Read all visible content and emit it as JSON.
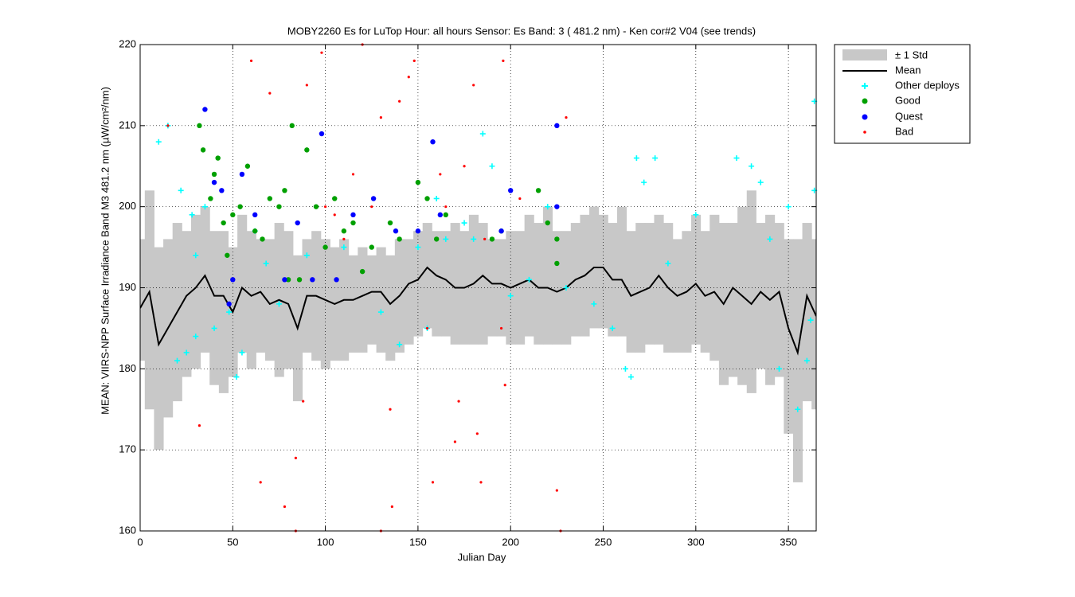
{
  "chart_data": {
    "type": "scatter",
    "title": "MOBY2260   Es for LuTop  Hour: all hours  Sensor: Es Band: 3 ( 481.2 nm)  - Ken cor#2 V04 (see trends)",
    "x_label": "Julian Day",
    "y_label": "MEAN: VIIRS-NPP Surface Irradiance Band M3 481.2 nm (µW/cm²/nm)",
    "xlim": [
      0,
      365
    ],
    "ylim": [
      160,
      220
    ],
    "xticks": [
      0,
      50,
      100,
      150,
      200,
      250,
      300,
      350
    ],
    "yticks": [
      160,
      170,
      180,
      190,
      200,
      210,
      220
    ],
    "grid": true,
    "legend": "outside-top-right",
    "band": {
      "name": "± 1 Std",
      "color": "#c8c8c8",
      "x": [
        0,
        5,
        10,
        15,
        20,
        25,
        30,
        35,
        40,
        45,
        50,
        55,
        60,
        65,
        70,
        75,
        80,
        85,
        90,
        95,
        100,
        105,
        110,
        115,
        120,
        125,
        130,
        135,
        140,
        145,
        150,
        155,
        160,
        165,
        170,
        175,
        180,
        185,
        190,
        195,
        200,
        205,
        210,
        215,
        220,
        225,
        230,
        235,
        240,
        245,
        250,
        255,
        260,
        265,
        270,
        275,
        280,
        285,
        290,
        295,
        300,
        305,
        310,
        315,
        320,
        325,
        330,
        335,
        340,
        345,
        350,
        355,
        360,
        365
      ],
      "upper": [
        196,
        202,
        195,
        196,
        198,
        197,
        199,
        200,
        197,
        197,
        195,
        199,
        197,
        196,
        196,
        198,
        197,
        194,
        196,
        197,
        196,
        195,
        196,
        194,
        195,
        194,
        195,
        194,
        196,
        196,
        197,
        198,
        197,
        197,
        198,
        197,
        199,
        198,
        196,
        196,
        197,
        197,
        199,
        198,
        200,
        197,
        197,
        198,
        199,
        200,
        199,
        198,
        200,
        197,
        198,
        198,
        199,
        198,
        196,
        197,
        199,
        197,
        199,
        198,
        198,
        200,
        202,
        198,
        199,
        198,
        196,
        196,
        198,
        196
      ],
      "lower": [
        181,
        175,
        170,
        174,
        176,
        179,
        180,
        182,
        178,
        177,
        179,
        182,
        180,
        182,
        181,
        179,
        180,
        176,
        182,
        181,
        180,
        181,
        181,
        182,
        182,
        183,
        182,
        181,
        182,
        183,
        184,
        185,
        184,
        184,
        183,
        183,
        183,
        183,
        184,
        184,
        183,
        183,
        184,
        183,
        183,
        183,
        183,
        184,
        184,
        185,
        185,
        184,
        184,
        182,
        182,
        183,
        183,
        182,
        182,
        182,
        183,
        182,
        181,
        178,
        179,
        178,
        177,
        180,
        178,
        179,
        172,
        166,
        176,
        175
      ]
    },
    "mean": {
      "name": "Mean",
      "color": "#000000",
      "x": [
        0,
        5,
        10,
        15,
        20,
        25,
        30,
        35,
        40,
        45,
        50,
        55,
        60,
        65,
        70,
        75,
        80,
        85,
        90,
        95,
        100,
        105,
        110,
        115,
        120,
        125,
        130,
        135,
        140,
        145,
        150,
        155,
        160,
        165,
        170,
        175,
        180,
        185,
        190,
        195,
        200,
        205,
        210,
        215,
        220,
        225,
        230,
        235,
        240,
        245,
        250,
        255,
        260,
        265,
        270,
        275,
        280,
        285,
        290,
        295,
        300,
        305,
        310,
        315,
        320,
        325,
        330,
        335,
        340,
        345,
        350,
        355,
        360,
        365
      ],
      "values": [
        187.5,
        189.5,
        183,
        185,
        187,
        189,
        190,
        191.5,
        189,
        189,
        187,
        190,
        189,
        189.5,
        188,
        188.5,
        188,
        185,
        189,
        189,
        188.5,
        188,
        188.5,
        188.5,
        189,
        189.5,
        189.5,
        188,
        189,
        190.5,
        191,
        192.5,
        191.5,
        191,
        190,
        190,
        190.5,
        191.5,
        190.5,
        190.5,
        190,
        190.5,
        191,
        190,
        190,
        189.5,
        190,
        191,
        191.5,
        192.5,
        192.5,
        191,
        191,
        189,
        189.5,
        190,
        191.5,
        190,
        189,
        189.5,
        190.5,
        189,
        189.5,
        188,
        190,
        189,
        188,
        189.5,
        188.5,
        189.5,
        185,
        182,
        189,
        186.5
      ]
    },
    "series": [
      {
        "name": "Other deploys",
        "color": "#00ffff",
        "marker": "+",
        "x": [
          10,
          15,
          22,
          28,
          30,
          20,
          25,
          30,
          35,
          40,
          48,
          52,
          55,
          62,
          68,
          75,
          90,
          110,
          130,
          140,
          150,
          155,
          160,
          165,
          175,
          180,
          185,
          190,
          200,
          210,
          220,
          230,
          245,
          255,
          262,
          265,
          268,
          272,
          278,
          285,
          300,
          322,
          330,
          335,
          340,
          345,
          350,
          355,
          360,
          362,
          364,
          364
        ],
        "values": [
          208,
          210,
          202,
          199,
          194,
          181,
          182,
          184,
          200,
          185,
          187,
          179,
          182,
          197,
          193,
          188,
          194,
          195,
          187,
          183,
          195,
          185,
          201,
          196,
          198,
          196,
          209,
          205,
          189,
          191,
          200,
          190,
          188,
          185,
          180,
          179,
          206,
          203,
          206,
          193,
          199,
          206,
          205,
          203,
          196,
          180,
          200,
          175,
          181,
          186,
          213,
          202
        ]
      },
      {
        "name": "Good",
        "color": "#00a000",
        "marker": "o",
        "x": [
          32,
          34,
          38,
          40,
          42,
          45,
          47,
          50,
          54,
          58,
          62,
          66,
          70,
          75,
          78,
          80,
          82,
          86,
          90,
          95,
          100,
          105,
          110,
          115,
          120,
          125,
          135,
          140,
          150,
          155,
          160,
          165,
          190,
          195,
          215,
          220,
          225,
          225
        ],
        "values": [
          210,
          207,
          201,
          204,
          206,
          198,
          194,
          199,
          200,
          205,
          197,
          196,
          201,
          200,
          202,
          191,
          210,
          191,
          207,
          200,
          195,
          201,
          197,
          198,
          192,
          195,
          198,
          196,
          203,
          201,
          196,
          199,
          196,
          197,
          202,
          198,
          196,
          193
        ]
      },
      {
        "name": "Quest",
        "color": "#0000ff",
        "marker": "o",
        "x": [
          35,
          40,
          44,
          48,
          50,
          55,
          62,
          78,
          85,
          93,
          98,
          106,
          115,
          126,
          138,
          150,
          158,
          162,
          195,
          200,
          225,
          225
        ],
        "values": [
          212,
          203,
          202,
          188,
          191,
          204,
          199,
          191,
          198,
          191,
          209,
          191,
          199,
          201,
          197,
          197,
          208,
          199,
          197,
          202,
          210,
          200
        ]
      },
      {
        "name": "Bad",
        "color": "#ff0000",
        "marker": ".",
        "x": [
          15,
          32,
          60,
          65,
          70,
          78,
          84,
          84,
          88,
          90,
          98,
          100,
          105,
          110,
          115,
          120,
          125,
          130,
          130,
          135,
          136,
          140,
          145,
          148,
          155,
          158,
          162,
          165,
          170,
          172,
          175,
          180,
          182,
          184,
          186,
          195,
          197,
          196,
          205,
          225,
          227,
          230
        ],
        "values": [
          210,
          173,
          218,
          166,
          214,
          163,
          169,
          160,
          176,
          215,
          219,
          200,
          199,
          196,
          204,
          220,
          200,
          211,
          160,
          175,
          163,
          213,
          216,
          218,
          185,
          166,
          204,
          200,
          171,
          176,
          205,
          215,
          172,
          166,
          196,
          185,
          178,
          218,
          201,
          165,
          160,
          211
        ]
      }
    ]
  }
}
